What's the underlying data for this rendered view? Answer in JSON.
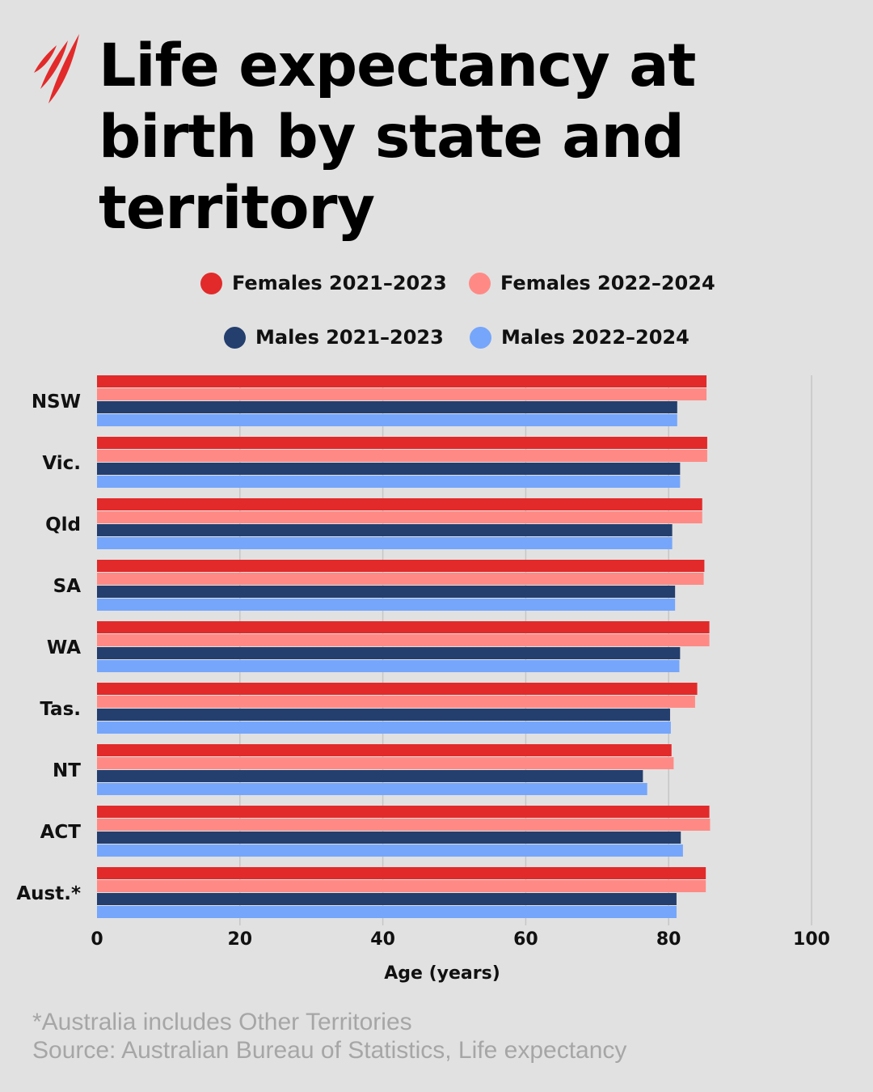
{
  "title": "Life expectancy at birth by state and territory",
  "logo": "SBS",
  "chart_data": {
    "type": "bar",
    "orientation": "horizontal",
    "categories": [
      "NSW",
      "Vic.",
      "Qld",
      "SA",
      "WA",
      "Tas.",
      "NT",
      "ACT",
      "Aust.*"
    ],
    "series": [
      {
        "name": "Females 2021–2023",
        "color": "#e22a2a",
        "values": [
          85.3,
          85.4,
          84.7,
          85.0,
          85.7,
          84.0,
          80.4,
          85.7,
          85.2
        ]
      },
      {
        "name": "Females 2022–2024",
        "color": "#ff8a85",
        "values": [
          85.3,
          85.4,
          84.7,
          84.9,
          85.7,
          83.7,
          80.7,
          85.8,
          85.2
        ]
      },
      {
        "name": "Males 2021–2023",
        "color": "#243f6e",
        "values": [
          81.2,
          81.6,
          80.5,
          80.9,
          81.6,
          80.2,
          76.4,
          81.7,
          81.1
        ]
      },
      {
        "name": "Males 2022–2024",
        "color": "#75a6fb",
        "values": [
          81.2,
          81.6,
          80.5,
          80.9,
          81.5,
          80.3,
          77.0,
          82.0,
          81.1
        ]
      }
    ],
    "xlabel": "Age (years)",
    "xlim": [
      0,
      100
    ],
    "xticks": [
      "0",
      "20",
      "40",
      "60",
      "80",
      "100"
    ],
    "grid": true,
    "legend_placement": "top"
  },
  "footer": {
    "note": "*Australia includes Other Territories",
    "source": "Source: Australian Bureau of Statistics, Life expectancy"
  }
}
